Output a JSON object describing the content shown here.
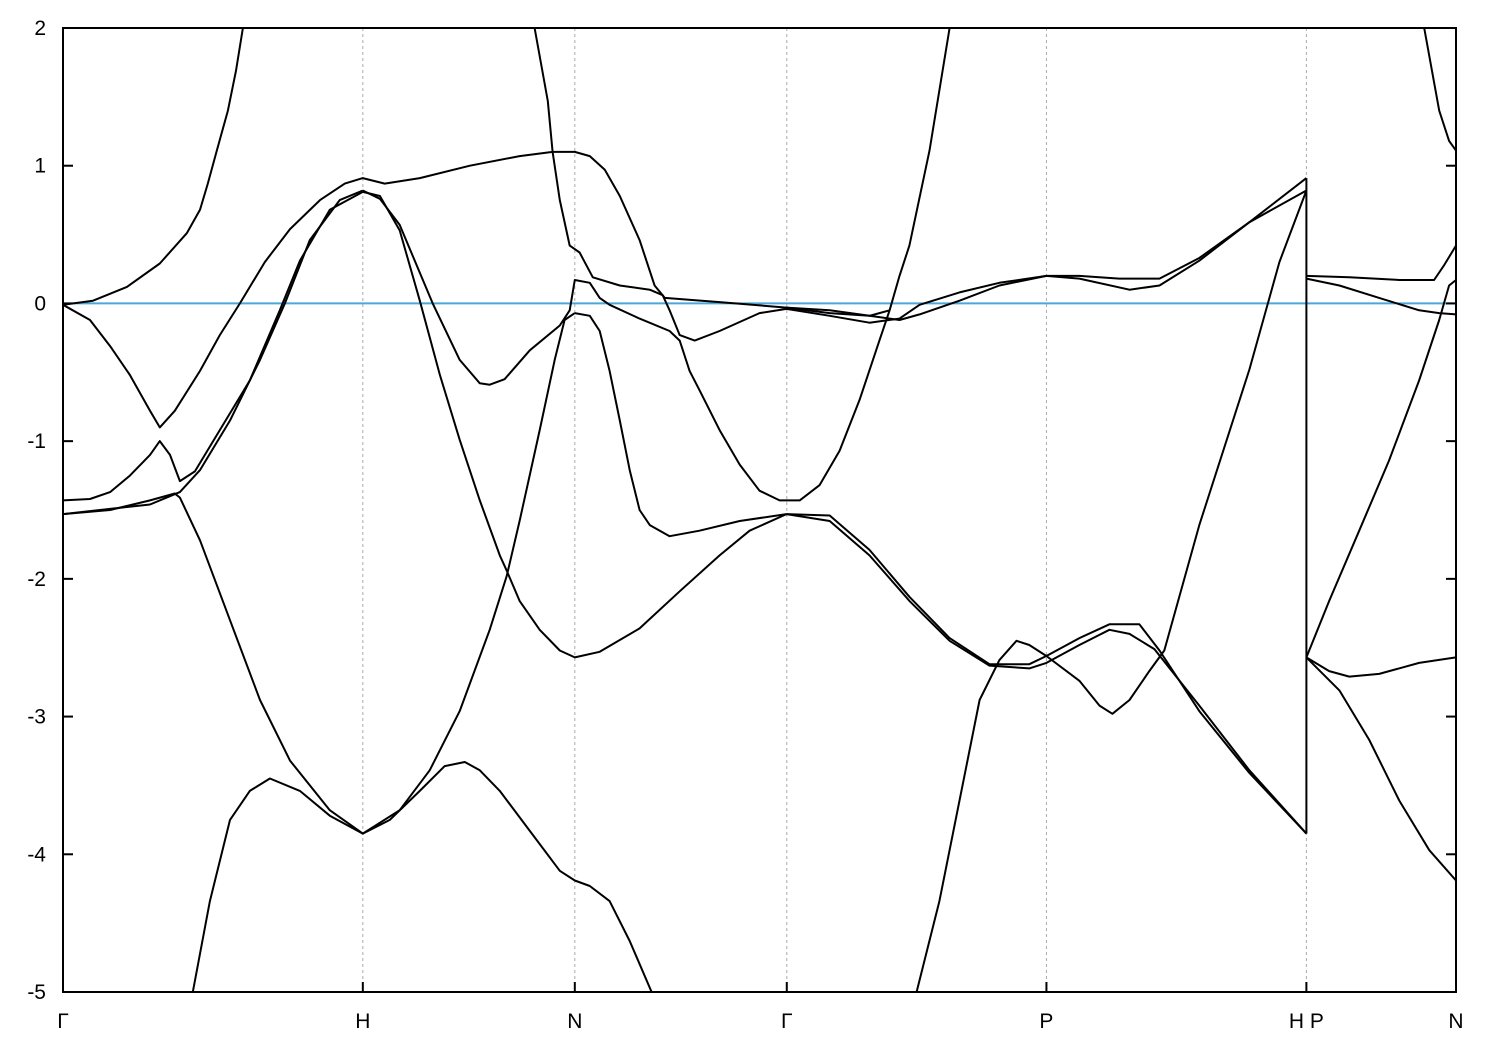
{
  "chart_data": {
    "type": "line",
    "title": "",
    "xlabel": "",
    "ylabel": "",
    "xlim": [
      0,
      4.646
    ],
    "ylim": [
      -5,
      2
    ],
    "yticks": [
      -5,
      -4,
      -3,
      -2,
      -1,
      0,
      1,
      2
    ],
    "xticks": [
      {
        "label": "Γ",
        "k": 0
      },
      {
        "label": "H",
        "k": 1.0
      },
      {
        "label": "N",
        "k": 1.707
      },
      {
        "label": "Γ",
        "k": 2.414
      },
      {
        "label": "P",
        "k": 3.28
      },
      {
        "label": "H P",
        "k": 4.147
      },
      {
        "label": "N",
        "k": 4.646
      }
    ],
    "grid": "vertical dashed lines at high-symmetry points",
    "reference_line": {
      "y": 0,
      "color": "#4aa8d8"
    },
    "line_color": "#000000",
    "bands": [
      [
        [
          0,
          -0.01
        ],
        [
          0.1,
          0.02
        ],
        [
          0.213,
          0.12
        ],
        [
          0.323,
          0.29
        ],
        [
          0.413,
          0.51
        ],
        [
          0.457,
          0.68
        ],
        [
          0.483,
          0.87
        ],
        [
          0.513,
          1.11
        ],
        [
          0.55,
          1.4
        ],
        [
          0.577,
          1.69
        ],
        [
          0.6,
          2.0
        ]
      ],
      [
        [
          0,
          -0.01
        ],
        [
          0.09,
          -0.12
        ],
        [
          0.157,
          -0.31
        ],
        [
          0.223,
          -0.52
        ],
        [
          0.29,
          -0.78
        ],
        [
          0.323,
          -0.9
        ],
        [
          0.373,
          -0.78
        ],
        [
          0.457,
          -0.49
        ],
        [
          0.523,
          -0.23
        ],
        [
          0.59,
          0
        ],
        [
          0.673,
          0.3
        ],
        [
          0.757,
          0.54
        ],
        [
          0.857,
          0.75
        ],
        [
          0.94,
          0.87
        ],
        [
          1.0,
          0.91
        ],
        [
          1.073,
          0.87
        ],
        [
          1.19,
          0.91
        ],
        [
          1.357,
          1.0
        ],
        [
          1.523,
          1.07
        ],
        [
          1.633,
          1.1
        ],
        [
          1.707,
          1.1
        ],
        [
          1.757,
          1.07
        ],
        [
          1.807,
          0.97
        ],
        [
          1.857,
          0.78
        ],
        [
          1.923,
          0.46
        ],
        [
          1.973,
          0.13
        ],
        [
          2.007,
          0.04
        ],
        [
          2.19,
          0.01
        ],
        [
          2.413,
          -0.03
        ],
        [
          2.557,
          -0.07
        ],
        [
          2.69,
          -0.09
        ],
        [
          2.723,
          -0.07
        ],
        [
          2.757,
          -0.05
        ]
      ],
      [
        [
          1.573,
          2.0
        ],
        [
          1.617,
          1.47
        ],
        [
          1.633,
          1.1
        ],
        [
          1.657,
          0.75
        ],
        [
          1.69,
          0.42
        ],
        [
          1.723,
          0.37
        ],
        [
          1.767,
          0.19
        ],
        [
          1.857,
          0.13
        ],
        [
          1.957,
          0.1
        ],
        [
          2.0,
          0.06
        ],
        [
          2.023,
          -0.05
        ],
        [
          2.057,
          -0.23
        ],
        [
          2.107,
          -0.27
        ],
        [
          2.19,
          -0.2
        ],
        [
          2.323,
          -0.07
        ],
        [
          2.413,
          -0.04
        ],
        [
          2.557,
          -0.09
        ],
        [
          2.69,
          -0.14
        ],
        [
          2.79,
          -0.11
        ],
        [
          2.857,
          -0.01
        ],
        [
          2.99,
          0.08
        ],
        [
          3.123,
          0.15
        ],
        [
          3.28,
          0.2
        ],
        [
          3.39,
          0.18
        ],
        [
          3.557,
          0.1
        ],
        [
          3.657,
          0.13
        ],
        [
          3.79,
          0.31
        ],
        [
          3.957,
          0.59
        ],
        [
          4.147,
          0.91
        ]
      ],
      [
        [
          2.413,
          -0.03
        ],
        [
          2.557,
          -0.05
        ],
        [
          2.69,
          -0.09
        ],
        [
          2.79,
          -0.12
        ],
        [
          2.857,
          -0.08
        ],
        [
          2.99,
          0.02
        ],
        [
          3.123,
          0.13
        ],
        [
          3.28,
          0.2
        ],
        [
          3.39,
          0.2
        ],
        [
          3.523,
          0.18
        ],
        [
          3.657,
          0.18
        ],
        [
          3.79,
          0.33
        ],
        [
          3.957,
          0.59
        ],
        [
          4.147,
          0.82
        ]
      ],
      [
        [
          1.0,
          0.82
        ],
        [
          1.057,
          0.76
        ],
        [
          1.123,
          0.57
        ],
        [
          1.233,
          0
        ],
        [
          1.323,
          -0.41
        ],
        [
          1.39,
          -0.58
        ],
        [
          1.423,
          -0.59
        ],
        [
          1.473,
          -0.55
        ],
        [
          1.557,
          -0.34
        ],
        [
          1.657,
          -0.16
        ],
        [
          1.69,
          -0.05
        ],
        [
          1.707,
          0.17
        ],
        [
          1.757,
          0.15
        ],
        [
          1.79,
          0.04
        ],
        [
          1.823,
          -0.01
        ],
        [
          1.923,
          -0.11
        ],
        [
          2.023,
          -0.2
        ],
        [
          2.057,
          -0.27
        ],
        [
          2.09,
          -0.49
        ],
        [
          2.123,
          -0.63
        ],
        [
          2.19,
          -0.92
        ],
        [
          2.257,
          -1.17
        ],
        [
          2.323,
          -1.36
        ],
        [
          2.39,
          -1.43
        ],
        [
          2.457,
          -1.43
        ],
        [
          2.523,
          -1.32
        ],
        [
          2.59,
          -1.07
        ],
        [
          2.657,
          -0.7
        ],
        [
          2.723,
          -0.27
        ],
        [
          2.757,
          -0.05
        ],
        [
          2.79,
          0.2
        ],
        [
          2.823,
          0.42
        ],
        [
          2.89,
          1.11
        ],
        [
          2.957,
          2.0
        ]
      ],
      [
        [
          1.707,
          -0.07
        ],
        [
          1.757,
          -0.09
        ],
        [
          1.79,
          -0.2
        ],
        [
          1.823,
          -0.49
        ],
        [
          1.857,
          -0.85
        ],
        [
          1.89,
          -1.21
        ],
        [
          1.923,
          -1.5
        ],
        [
          1.957,
          -1.61
        ],
        [
          2.023,
          -1.69
        ],
        [
          2.123,
          -1.65
        ],
        [
          2.257,
          -1.58
        ],
        [
          2.413,
          -1.53
        ]
      ],
      [
        [
          1.0,
          -3.85
        ],
        [
          1.123,
          -3.68
        ],
        [
          1.223,
          -3.39
        ],
        [
          1.323,
          -2.96
        ],
        [
          1.423,
          -2.37
        ],
        [
          1.48,
          -1.98
        ],
        [
          1.523,
          -1.58
        ],
        [
          1.59,
          -0.92
        ],
        [
          1.64,
          -0.41
        ],
        [
          1.673,
          -0.12
        ],
        [
          1.707,
          -0.07
        ]
      ],
      [
        [
          1.0,
          0.81
        ],
        [
          1.057,
          0.78
        ],
        [
          1.123,
          0.53
        ],
        [
          1.19,
          0.02
        ],
        [
          1.257,
          -0.52
        ],
        [
          1.323,
          -0.99
        ],
        [
          1.39,
          -1.43
        ],
        [
          1.457,
          -1.83
        ],
        [
          1.48,
          -1.94
        ],
        [
          1.523,
          -2.16
        ],
        [
          1.59,
          -2.37
        ],
        [
          1.657,
          -2.52
        ],
        [
          1.707,
          -2.57
        ],
        [
          1.79,
          -2.53
        ],
        [
          1.923,
          -2.36
        ],
        [
          2.057,
          -2.09
        ],
        [
          2.19,
          -1.83
        ],
        [
          2.29,
          -1.65
        ],
        [
          2.413,
          -1.53
        ]
      ],
      [
        [
          2.413,
          -1.53
        ],
        [
          2.557,
          -1.58
        ],
        [
          2.69,
          -1.83
        ],
        [
          2.823,
          -2.16
        ],
        [
          2.957,
          -2.45
        ],
        [
          3.09,
          -2.63
        ],
        [
          3.223,
          -2.65
        ],
        [
          3.28,
          -2.61
        ],
        [
          3.39,
          -2.48
        ],
        [
          3.49,
          -2.37
        ],
        [
          3.557,
          -2.4
        ],
        [
          3.64,
          -2.51
        ],
        [
          3.79,
          -2.92
        ],
        [
          3.957,
          -3.39
        ],
        [
          4.147,
          -3.85
        ]
      ],
      [
        [
          2.413,
          -1.53
        ],
        [
          2.557,
          -1.54
        ],
        [
          2.69,
          -1.79
        ],
        [
          2.823,
          -2.13
        ],
        [
          2.957,
          -2.43
        ],
        [
          3.09,
          -2.62
        ],
        [
          3.223,
          -2.62
        ],
        [
          3.28,
          -2.56
        ],
        [
          3.39,
          -2.43
        ],
        [
          3.49,
          -2.33
        ],
        [
          3.59,
          -2.33
        ],
        [
          3.657,
          -2.52
        ],
        [
          3.79,
          -2.96
        ],
        [
          3.957,
          -3.41
        ],
        [
          4.147,
          -3.85
        ]
      ],
      [
        [
          2.847,
          -5.0
        ],
        [
          2.923,
          -4.34
        ],
        [
          2.99,
          -3.61
        ],
        [
          3.057,
          -2.88
        ],
        [
          3.123,
          -2.59
        ],
        [
          3.18,
          -2.45
        ],
        [
          3.223,
          -2.48
        ],
        [
          3.28,
          -2.56
        ],
        [
          3.39,
          -2.74
        ],
        [
          3.457,
          -2.92
        ],
        [
          3.5,
          -2.98
        ],
        [
          3.557,
          -2.88
        ],
        [
          3.623,
          -2.67
        ],
        [
          3.673,
          -2.52
        ],
        [
          3.79,
          -1.61
        ],
        [
          3.957,
          -0.48
        ],
        [
          4.057,
          0.3
        ],
        [
          4.147,
          0.82
        ]
      ],
      [
        [
          4.147,
          0.91
        ],
        [
          4.147,
          -3.85
        ]
      ],
      [
        [
          0,
          -1.53
        ],
        [
          0.157,
          -1.5
        ],
        [
          0.29,
          -1.43
        ],
        [
          0.373,
          -1.38
        ],
        [
          0.39,
          -1.41
        ],
        [
          0.457,
          -1.72
        ],
        [
          0.557,
          -2.3
        ],
        [
          0.657,
          -2.88
        ],
        [
          0.757,
          -3.32
        ],
        [
          0.89,
          -3.68
        ],
        [
          1.0,
          -3.85
        ]
      ],
      [
        [
          0.433,
          -5.0
        ],
        [
          0.49,
          -4.34
        ],
        [
          0.557,
          -3.75
        ],
        [
          0.623,
          -3.54
        ],
        [
          0.69,
          -3.45
        ],
        [
          0.79,
          -3.54
        ],
        [
          0.89,
          -3.72
        ],
        [
          1.0,
          -3.85
        ],
        [
          1.09,
          -3.75
        ],
        [
          1.19,
          -3.54
        ],
        [
          1.273,
          -3.36
        ],
        [
          1.34,
          -3.33
        ],
        [
          1.39,
          -3.39
        ],
        [
          1.457,
          -3.54
        ],
        [
          1.557,
          -3.83
        ],
        [
          1.657,
          -4.12
        ],
        [
          1.707,
          -4.19
        ],
        [
          1.757,
          -4.23
        ],
        [
          1.823,
          -4.34
        ],
        [
          1.89,
          -4.63
        ],
        [
          1.963,
          -5.0
        ]
      ],
      [
        [
          0,
          -1.43
        ],
        [
          0.09,
          -1.42
        ],
        [
          0.157,
          -1.37
        ],
        [
          0.223,
          -1.25
        ],
        [
          0.29,
          -1.1
        ],
        [
          0.323,
          -1.0
        ],
        [
          0.357,
          -1.1
        ],
        [
          0.39,
          -1.29
        ],
        [
          0.44,
          -1.22
        ],
        [
          0.523,
          -0.92
        ],
        [
          0.623,
          -0.56
        ],
        [
          0.723,
          -0.05
        ],
        [
          0.79,
          0.31
        ],
        [
          0.89,
          0.68
        ],
        [
          1.0,
          0.81
        ]
      ],
      [
        [
          0,
          -1.53
        ],
        [
          0.123,
          -1.5
        ],
        [
          0.29,
          -1.46
        ],
        [
          0.357,
          -1.4
        ],
        [
          0.39,
          -1.37
        ],
        [
          0.457,
          -1.21
        ],
        [
          0.557,
          -0.85
        ],
        [
          0.657,
          -0.41
        ],
        [
          0.74,
          0
        ],
        [
          0.823,
          0.46
        ],
        [
          0.923,
          0.75
        ],
        [
          1.0,
          0.82
        ]
      ],
      [
        [
          4.147,
          0.2
        ],
        [
          4.29,
          0.19
        ],
        [
          4.457,
          0.17
        ],
        [
          4.573,
          0.17
        ],
        [
          4.607,
          0.28
        ],
        [
          4.646,
          0.42
        ]
      ],
      [
        [
          4.147,
          0.18
        ],
        [
          4.257,
          0.13
        ],
        [
          4.39,
          0.04
        ],
        [
          4.523,
          -0.05
        ],
        [
          4.59,
          -0.07
        ],
        [
          4.646,
          -0.08
        ]
      ],
      [
        [
          4.147,
          -2.57
        ],
        [
          4.223,
          -2.16
        ],
        [
          4.323,
          -1.65
        ],
        [
          4.423,
          -1.14
        ],
        [
          4.523,
          -0.56
        ],
        [
          4.59,
          -0.12
        ],
        [
          4.623,
          0.13
        ],
        [
          4.646,
          0.17
        ]
      ],
      [
        [
          4.147,
          -2.57
        ],
        [
          4.223,
          -2.67
        ],
        [
          4.29,
          -2.71
        ],
        [
          4.39,
          -2.69
        ],
        [
          4.523,
          -2.61
        ],
        [
          4.646,
          -2.57
        ]
      ],
      [
        [
          4.147,
          -2.57
        ],
        [
          4.257,
          -2.81
        ],
        [
          4.357,
          -3.17
        ],
        [
          4.457,
          -3.61
        ],
        [
          4.557,
          -3.97
        ],
        [
          4.646,
          -4.19
        ]
      ],
      [
        [
          4.54,
          2.0
        ],
        [
          4.59,
          1.4
        ],
        [
          4.623,
          1.18
        ],
        [
          4.646,
          1.11
        ]
      ]
    ]
  }
}
